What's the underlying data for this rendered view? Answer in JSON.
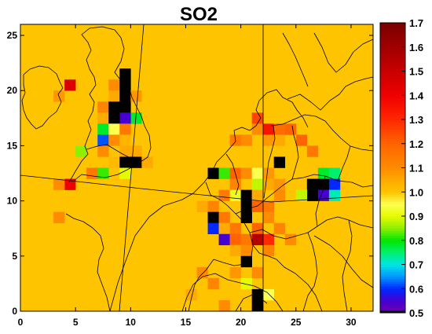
{
  "chart_data": {
    "type": "heatmap",
    "title": "SO2",
    "xlabel": "",
    "ylabel": "",
    "xlim": [
      0,
      32
    ],
    "ylim": [
      0,
      26
    ],
    "x_ticks": [
      "0",
      "5",
      "10",
      "15",
      "20",
      "25",
      "30"
    ],
    "y_ticks": [
      "0",
      "5",
      "10",
      "15",
      "20",
      "25"
    ],
    "background_value": 1.0,
    "colorbar": {
      "min": 0.5,
      "max": 1.7,
      "ticks": [
        "1.7",
        "1.6",
        "1.5",
        "1.4",
        "1.3",
        "1.2",
        "1.1",
        "1.0",
        "0.9",
        "0.8",
        "0.7",
        "0.6",
        "0.5"
      ]
    },
    "cells": [
      [
        4,
        20,
        1.45
      ],
      [
        3,
        19,
        1.08
      ],
      [
        9,
        21,
        0.5
      ],
      [
        8,
        20,
        1.1
      ],
      [
        9,
        20,
        0.5
      ],
      [
        8,
        19,
        1.05
      ],
      [
        9,
        19,
        0.5
      ],
      [
        10,
        19,
        1.08
      ],
      [
        7,
        18,
        1.12
      ],
      [
        8,
        18,
        0.5
      ],
      [
        9,
        18,
        0.5
      ],
      [
        10,
        17,
        0.78
      ],
      [
        9,
        17,
        0.55
      ],
      [
        7,
        17,
        1.05
      ],
      [
        8,
        17,
        0.5
      ],
      [
        7,
        16,
        0.78
      ],
      [
        8,
        16,
        0.95
      ],
      [
        9,
        16,
        1.15
      ],
      [
        7,
        15,
        0.62
      ],
      [
        8,
        15,
        1.1
      ],
      [
        9,
        15,
        1.03
      ],
      [
        5,
        14,
        0.85
      ],
      [
        7,
        14,
        1.1
      ],
      [
        9,
        14,
        1.05
      ],
      [
        10,
        14,
        1.05
      ],
      [
        8,
        13,
        1.02
      ],
      [
        9,
        13,
        0.5
      ],
      [
        10,
        13,
        0.5
      ],
      [
        11,
        13,
        1.05
      ],
      [
        6,
        12,
        1.15
      ],
      [
        7,
        12,
        0.82
      ],
      [
        9,
        12,
        0.9
      ],
      [
        4,
        11,
        1.4
      ],
      [
        3,
        11,
        1.1
      ],
      [
        21,
        17,
        1.25
      ],
      [
        22,
        16,
        1.35
      ],
      [
        21,
        16,
        1.1
      ],
      [
        23,
        16,
        1.18
      ],
      [
        24,
        16,
        1.2
      ],
      [
        19,
        15,
        1.15
      ],
      [
        20,
        15,
        1.1
      ],
      [
        22,
        15,
        1.08
      ],
      [
        23,
        15,
        1.05
      ],
      [
        25,
        15,
        1.2
      ],
      [
        26,
        14,
        1.15
      ],
      [
        23,
        13,
        0.5
      ],
      [
        17,
        12,
        0.5
      ],
      [
        18,
        12,
        0.82
      ],
      [
        19,
        12,
        1.2
      ],
      [
        20,
        12,
        1.1
      ],
      [
        21,
        12,
        0.95
      ],
      [
        22,
        12,
        1.08
      ],
      [
        27,
        12,
        0.78
      ],
      [
        28,
        12,
        0.75
      ],
      [
        26,
        11,
        0.5
      ],
      [
        27,
        11,
        0.5
      ],
      [
        28,
        11,
        0.6
      ],
      [
        26,
        10,
        0.5
      ],
      [
        27,
        10,
        0.55
      ],
      [
        28,
        10,
        0.72
      ],
      [
        25,
        10,
        0.88
      ],
      [
        19,
        11,
        1.12
      ],
      [
        21,
        11,
        0.88
      ],
      [
        22,
        11,
        1.05
      ],
      [
        23,
        11,
        1.08
      ],
      [
        18,
        10,
        1.15
      ],
      [
        19,
        10,
        0.92
      ],
      [
        20,
        10,
        0.5
      ],
      [
        21,
        10,
        1.05
      ],
      [
        23,
        10,
        1.1
      ],
      [
        16,
        9,
        1.05
      ],
      [
        17,
        9,
        1.12
      ],
      [
        20,
        9,
        0.5
      ],
      [
        21,
        9,
        1.2
      ],
      [
        22,
        9,
        1.15
      ],
      [
        17,
        8,
        0.5
      ],
      [
        18,
        8,
        1.15
      ],
      [
        20,
        8,
        0.5
      ],
      [
        22,
        8,
        1.1
      ],
      [
        17,
        7,
        0.6
      ],
      [
        18,
        7,
        1.05
      ],
      [
        19,
        7,
        1.15
      ],
      [
        21,
        7,
        1.2
      ],
      [
        23,
        7,
        1.12
      ],
      [
        18,
        6,
        0.55
      ],
      [
        19,
        6,
        1.2
      ],
      [
        20,
        6,
        1.15
      ],
      [
        21,
        6,
        1.55
      ],
      [
        22,
        6,
        1.3
      ],
      [
        24,
        6,
        1.1
      ],
      [
        19,
        5,
        1.05
      ],
      [
        20,
        5,
        1.1
      ],
      [
        22,
        5,
        1.12
      ],
      [
        20,
        4,
        0.5
      ],
      [
        19,
        3,
        1.08
      ],
      [
        21,
        3,
        1.1
      ],
      [
        20,
        2,
        0.9
      ],
      [
        16,
        3,
        1.1
      ],
      [
        17,
        2,
        1.12
      ],
      [
        21,
        1,
        0.5
      ],
      [
        22,
        1,
        0.95
      ],
      [
        21,
        0,
        0.5
      ],
      [
        15,
        1,
        1.05
      ],
      [
        18,
        0,
        1.1
      ],
      [
        3,
        8,
        1.1
      ]
    ]
  }
}
